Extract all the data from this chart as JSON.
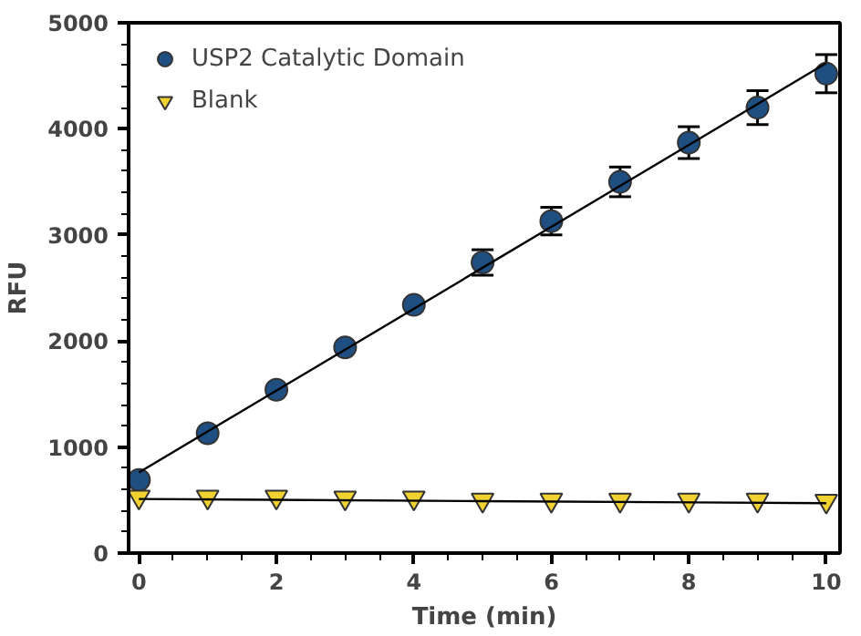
{
  "chart_data": {
    "type": "scatter",
    "xlabel": "Time (min)",
    "ylabel": "RFU",
    "x": [
      0,
      1,
      2,
      3,
      4,
      5,
      6,
      7,
      8,
      9,
      10
    ],
    "series": [
      {
        "name": "USP2 Catalytic Domain",
        "marker": "circle",
        "color": "#1f4e80",
        "values": [
          690,
          1130,
          1540,
          1940,
          2340,
          2740,
          3130,
          3500,
          3870,
          4200,
          4520
        ],
        "errors": [
          null,
          null,
          null,
          null,
          null,
          120,
          130,
          140,
          150,
          160,
          180
        ]
      },
      {
        "name": "Blank",
        "marker": "triangle",
        "color": "#f2d230",
        "values": [
          530,
          530,
          530,
          520,
          520,
          500,
          500,
          500,
          500,
          500,
          490
        ]
      },
      {
        "type": "line",
        "color": "#000000",
        "x": [
          0,
          5,
          10
        ],
        "values": [
          760,
          2690,
          4620
        ]
      },
      {
        "type": "line",
        "color": "#000000",
        "x": [
          0,
          5,
          10
        ],
        "values": [
          510,
          490,
          470
        ]
      }
    ],
    "xlim": [
      -0.15,
      10.2
    ],
    "ylim": [
      0,
      5000
    ],
    "xticks": [
      0,
      2,
      4,
      6,
      8,
      10
    ],
    "yticks": [
      0,
      1000,
      2000,
      3000,
      4000,
      5000
    ],
    "grid": false,
    "legend": "top left"
  }
}
